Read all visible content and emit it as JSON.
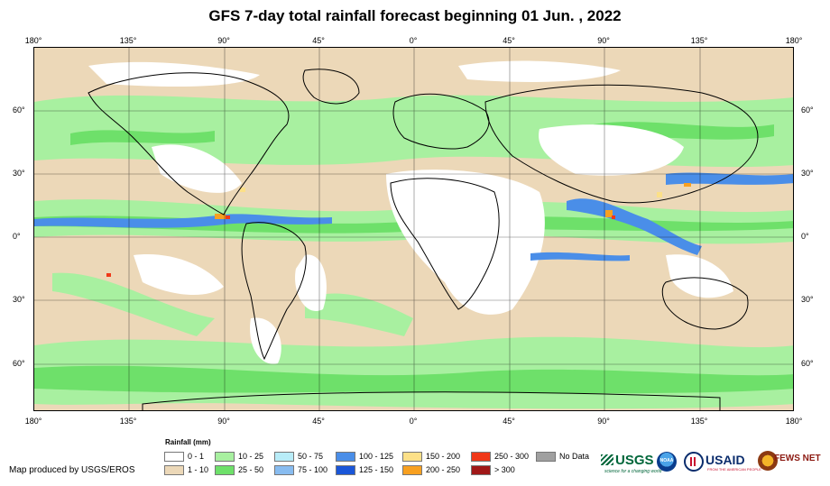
{
  "title": "GFS 7-day total rainfall forecast beginning 01 Jun. , 2022",
  "lon_ticks": [
    "180°",
    "135°",
    "90°",
    "45°",
    "0°",
    "45°",
    "90°",
    "135°",
    "180°"
  ],
  "lat_ticks": [
    "60°",
    "30°",
    "0°",
    "30°",
    "60°"
  ],
  "legend": {
    "title": "Rainfall (mm)",
    "items": [
      {
        "label": "0 - 1",
        "color": "#ffffff"
      },
      {
        "label": "1 - 10",
        "color": "#ecd8b8"
      },
      {
        "label": "10 - 25",
        "color": "#a8f0a0"
      },
      {
        "label": "25 - 50",
        "color": "#6ee06a"
      },
      {
        "label": "50 - 75",
        "color": "#b8ecf8"
      },
      {
        "label": "75 - 100",
        "color": "#88bcf0"
      },
      {
        "label": "100 - 125",
        "color": "#4a8ee8"
      },
      {
        "label": "125 - 150",
        "color": "#1a56d8"
      },
      {
        "label": "150 - 200",
        "color": "#fce088"
      },
      {
        "label": "200 - 250",
        "color": "#f8a020"
      },
      {
        "label": "250 - 300",
        "color": "#f03818"
      },
      {
        "label": "> 300",
        "color": "#a01818"
      },
      {
        "label": "No Data",
        "color": "#a0a0a0"
      }
    ]
  },
  "credit": "Map produced by USGS/EROS",
  "logos": {
    "usgs": "USGS",
    "usgs_tagline": "science for a changing world",
    "noaa": "NOAA",
    "usaid": "USAID",
    "usaid_tagline": "FROM THE AMERICAN PEOPLE",
    "fewsnet": "FEWS NET"
  },
  "colors": {
    "dry": "#ecd8b8",
    "light": "#a8f0a0",
    "moderate": "#6ee06a",
    "heavy_blue": "#4a8ee8",
    "extreme": "#f03818",
    "usgs_green": "#00663a",
    "usaid_blue": "#0a2c6c",
    "usaid_red": "#c8102e"
  }
}
